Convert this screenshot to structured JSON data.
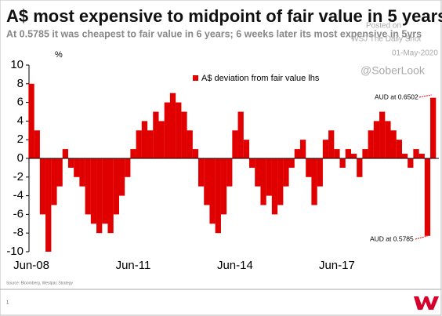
{
  "chart_data": {
    "type": "bar",
    "title": "A$ most expensive to midpoint of fair value in 5 years",
    "subtitle": "At 0.5785 it was cheapest to fair value in 6 years; 6 weeks later its most expensive in 5yrs",
    "posted_on": "Posted on",
    "publisher": "WSJ  The Daily Shot",
    "date": "01-May-2020",
    "handle": "@SoberLook",
    "y_label": "%",
    "source": "Source: Bloomberg, Westpac Strategy",
    "page_number": "1",
    "annotations": [
      "AUD at 0.6502",
      "AUD at 0.5785"
    ],
    "categories": [
      "Jun-08",
      null,
      null,
      null,
      null,
      null,
      null,
      null,
      null,
      null,
      null,
      null,
      null,
      null,
      null,
      null,
      null,
      null,
      "Jun-11",
      null,
      null,
      null,
      null,
      null,
      null,
      null,
      null,
      null,
      null,
      null,
      null,
      null,
      null,
      null,
      null,
      null,
      "Jun-14",
      null,
      null,
      null,
      null,
      null,
      null,
      null,
      null,
      null,
      null,
      null,
      null,
      null,
      null,
      null,
      null,
      null,
      "Jun-17",
      null,
      null,
      null,
      null,
      null,
      null,
      null,
      null,
      null,
      null,
      null,
      null,
      null,
      null,
      null,
      null,
      null
    ],
    "series": [
      {
        "name": "A$ deviation from fair value lhs",
        "color": "#e00000",
        "values": [
          8,
          3,
          -6,
          -10,
          -5,
          -3,
          1,
          -1,
          -2,
          -3,
          -6,
          -7,
          -8,
          -7,
          -8,
          -6,
          -4,
          -2,
          1,
          3,
          4,
          3,
          5,
          4,
          6,
          7,
          6,
          5,
          3,
          1,
          -3,
          -5,
          -7,
          -8,
          -6,
          -3,
          3,
          5,
          2,
          -1,
          -3,
          -5,
          -4,
          -6,
          -5,
          -3,
          -1,
          1,
          2,
          -2,
          -5,
          -3,
          2,
          3,
          1,
          -1,
          1,
          0.5,
          -2,
          1,
          3,
          4,
          5,
          4,
          3,
          2,
          0.5,
          -1,
          1,
          0.5,
          -8.3,
          6.5
        ]
      }
    ],
    "ylim": [
      -10,
      10
    ],
    "yticks": [
      -10,
      -8,
      -6,
      -4,
      -2,
      0,
      2,
      4,
      6,
      8,
      10
    ],
    "grid": false
  }
}
